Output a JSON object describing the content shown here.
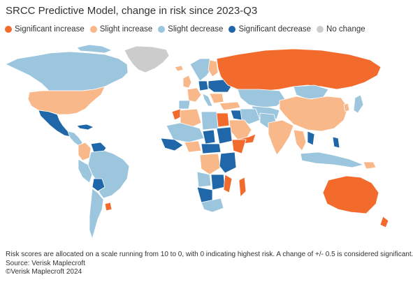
{
  "title": "SRCC Predictive Model, change in risk since 2023-Q3",
  "legend": [
    {
      "label": "Significant increase",
      "color": "#f26b2d",
      "category": "significant-increase"
    },
    {
      "label": "Slight increase",
      "color": "#f9b88a",
      "category": "slight-increase"
    },
    {
      "label": "Slight decrease",
      "color": "#9cc5de",
      "category": "slight-decrease"
    },
    {
      "label": "Significant decrease",
      "color": "#1f67a8",
      "category": "significant-decrease"
    },
    {
      "label": "No change",
      "color": "#cccccc",
      "category": "no-change"
    }
  ],
  "footer": {
    "note": "Risk scores are allocated on a scale running from 10 to 0, with 0 indicating highest risk. A change of +/- 0.5 is considered significant.",
    "source": "Source: Verisk Maplecroft",
    "copyright": "©Verisk Maplecroft 2024"
  },
  "regions": [
    {
      "name": "Russia",
      "category": "significant-increase"
    },
    {
      "name": "Australia",
      "category": "significant-increase"
    },
    {
      "name": "Madagascar",
      "category": "significant-increase"
    },
    {
      "name": "United States",
      "category": "slight-increase"
    },
    {
      "name": "China",
      "category": "slight-increase"
    },
    {
      "name": "India",
      "category": "slight-increase"
    },
    {
      "name": "Canada",
      "category": "slight-decrease"
    },
    {
      "name": "Brazil",
      "category": "slight-decrease"
    },
    {
      "name": "Mexico",
      "category": "significant-decrease"
    },
    {
      "name": "Greenland",
      "category": "no-change"
    }
  ]
}
